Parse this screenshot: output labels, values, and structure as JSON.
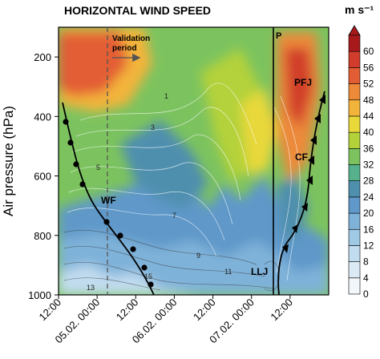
{
  "chart_data": {
    "type": "heatmap",
    "title": "HORIZONTAL WIND SPEED",
    "ylabel": "Air pressure (hPa)",
    "y_axis": {
      "ticks": [
        200,
        400,
        600,
        800,
        1000
      ],
      "range": [
        100,
        1000
      ],
      "direction": "inverted"
    },
    "x_axis": {
      "tick_labels": [
        "12:00",
        "05.02. 00:00",
        "12:00",
        "06.02. 00:00",
        "12:00",
        "07.02. 00:00",
        "12:00"
      ],
      "range_hours": [
        0,
        84
      ]
    },
    "colorbar": {
      "label": "m s⁻¹",
      "levels": [
        0,
        4,
        8,
        12,
        16,
        20,
        24,
        28,
        32,
        36,
        40,
        44,
        48,
        52,
        56,
        60
      ],
      "colors": [
        "#f2f7fb",
        "#dbe9f4",
        "#c1dcef",
        "#a0c9e6",
        "#7fb2d9",
        "#5f98c9",
        "#4f8fae",
        "#55b08c",
        "#7cc35f",
        "#b3d23a",
        "#e9d83a",
        "#f3b43b",
        "#ec8a3a",
        "#e35d34",
        "#d13c2c",
        "#a8191c"
      ]
    },
    "annotations": {
      "validation_label": "Validation\nperiod",
      "fronts": [
        "WF",
        "CF",
        "PFJ",
        "LLJ",
        "P"
      ]
    },
    "isotherm_labels": [
      "1",
      "3",
      "5",
      "7",
      "9",
      "11",
      "13",
      "15"
    ],
    "isotherm_count_approx": 30
  }
}
